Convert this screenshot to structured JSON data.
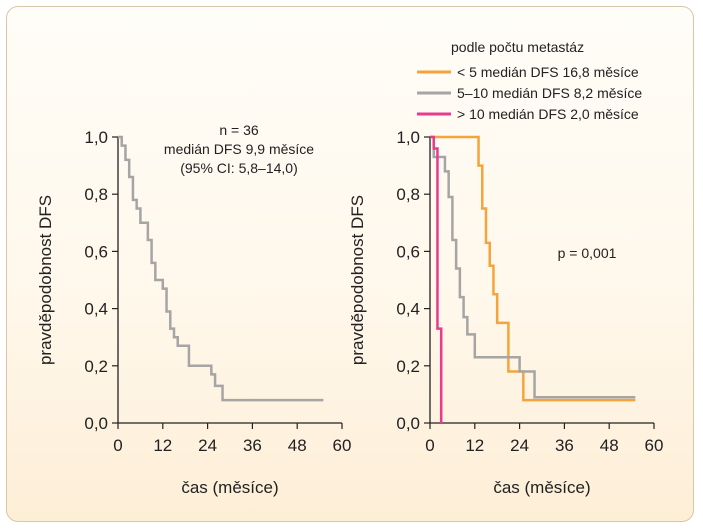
{
  "chart_data": [
    {
      "type": "line",
      "xlabel": "čas (měsíce)",
      "ylabel": "pravděpodobnost DFS",
      "xlim": [
        0,
        60
      ],
      "ylim": [
        0,
        1.0
      ],
      "x_ticks": [
        "0",
        "12",
        "24",
        "36",
        "48",
        "60"
      ],
      "y_ticks": [
        "0,0",
        "0,2",
        "0,4",
        "0,6",
        "0,8",
        "1,0"
      ],
      "annotation": [
        "n = 36",
        "medián DFS 9,9 měsíce",
        "(95% CI: 5,8–14,0)"
      ],
      "grid": false,
      "series": [
        {
          "color": "#a5a5a5",
          "step": true,
          "points": [
            [
              0,
              1.0
            ],
            [
              1,
              0.97
            ],
            [
              2,
              0.92
            ],
            [
              3,
              0.86
            ],
            [
              4,
              0.78
            ],
            [
              5,
              0.75
            ],
            [
              6,
              0.7
            ],
            [
              8,
              0.64
            ],
            [
              9,
              0.56
            ],
            [
              10,
              0.5
            ],
            [
              12,
              0.47
            ],
            [
              13,
              0.39
            ],
            [
              14,
              0.33
            ],
            [
              15,
              0.3
            ],
            [
              16,
              0.27
            ],
            [
              19,
              0.2
            ],
            [
              25,
              0.17
            ],
            [
              26,
              0.13
            ],
            [
              28,
              0.08
            ],
            [
              55,
              0.08
            ]
          ]
        }
      ]
    },
    {
      "type": "line",
      "xlabel": "čas (měsíce)",
      "ylabel": "pravděpodobnost DFS",
      "xlim": [
        0,
        60
      ],
      "ylim": [
        0,
        1.0
      ],
      "x_ticks": [
        "0",
        "12",
        "24",
        "36",
        "48",
        "60"
      ],
      "y_ticks": [
        "0,0",
        "0,2",
        "0,4",
        "0,6",
        "0,8",
        "1,0"
      ],
      "annotation": [
        "p = 0,001"
      ],
      "legend": {
        "title": "podle počtu metastáz",
        "placement": "top-right"
      },
      "grid": false,
      "series": [
        {
          "name": "< 5 medián DFS 16,8 měsíce",
          "color": "#f5a43c",
          "step": true,
          "points": [
            [
              0,
              1.0
            ],
            [
              10,
              1.0
            ],
            [
              13,
              0.9
            ],
            [
              14,
              0.75
            ],
            [
              15,
              0.63
            ],
            [
              16,
              0.55
            ],
            [
              17,
              0.45
            ],
            [
              18,
              0.35
            ],
            [
              21,
              0.18
            ],
            [
              25,
              0.08
            ],
            [
              28,
              0.08
            ],
            [
              55,
              0.08
            ]
          ]
        },
        {
          "name": "5–10 medián DFS 8,2 měsíce",
          "color": "#a5a5a5",
          "step": true,
          "points": [
            [
              0,
              1.0
            ],
            [
              1,
              0.93
            ],
            [
              4,
              0.88
            ],
            [
              5,
              0.79
            ],
            [
              6,
              0.64
            ],
            [
              7,
              0.54
            ],
            [
              8,
              0.44
            ],
            [
              9,
              0.37
            ],
            [
              10,
              0.31
            ],
            [
              12,
              0.23
            ],
            [
              14,
              0.23
            ],
            [
              24,
              0.18
            ],
            [
              28,
              0.09
            ],
            [
              55,
              0.09
            ]
          ]
        },
        {
          "name": "> 10 medián DFS 2,0 měsíce",
          "color": "#e83b8f",
          "step": true,
          "points": [
            [
              0,
              1.0
            ],
            [
              1,
              0.96
            ],
            [
              2,
              0.33
            ],
            [
              3,
              0.0
            ]
          ]
        }
      ]
    }
  ]
}
